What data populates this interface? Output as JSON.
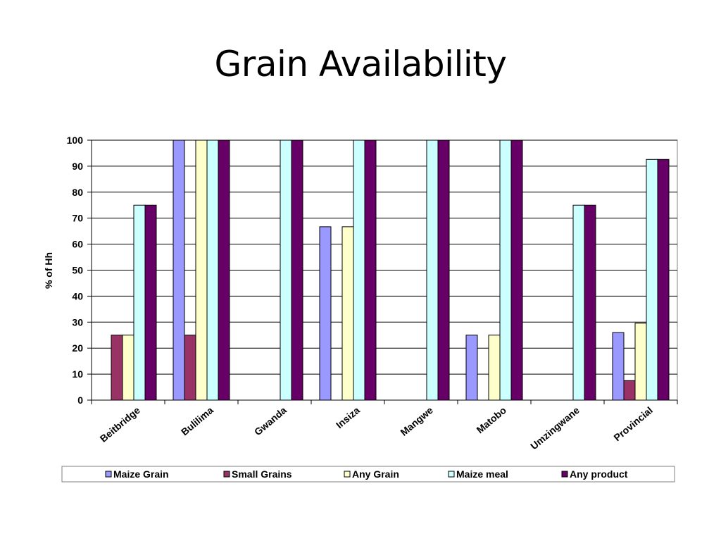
{
  "slide": {
    "title": "Grain Availability"
  },
  "chart_data": {
    "type": "bar",
    "title": "Grain Availability",
    "ylabel": "% of Hh",
    "xlabel": "",
    "ylim": [
      0,
      100
    ],
    "yticks": [
      0,
      10,
      20,
      30,
      40,
      50,
      60,
      70,
      80,
      90,
      100
    ],
    "grid": true,
    "legend_position": "bottom",
    "categories": [
      "Beitbridge",
      "Bulilima",
      "Gwanda",
      "Insiza",
      "Mangwe",
      "Matobo",
      "Umzingwane",
      "Provincial"
    ],
    "series": [
      {
        "name": "Maize Grain",
        "color": "#9999ff",
        "values": [
          0,
          100,
          0,
          66.7,
          0,
          25,
          0,
          26
        ]
      },
      {
        "name": "Small Grains",
        "color": "#993366",
        "values": [
          25,
          25,
          0,
          0,
          0,
          0,
          0,
          7.5
        ]
      },
      {
        "name": "Any Grain",
        "color": "#ffffcc",
        "values": [
          25,
          100,
          0,
          66.7,
          0,
          25,
          0,
          29.6
        ]
      },
      {
        "name": "Maize meal",
        "color": "#ccffff",
        "values": [
          75,
          100,
          100,
          100,
          100,
          100,
          75,
          92.6
        ]
      },
      {
        "name": "Any product",
        "color": "#660066",
        "values": [
          75,
          100,
          100,
          100,
          100,
          100,
          75,
          92.6
        ]
      }
    ]
  }
}
